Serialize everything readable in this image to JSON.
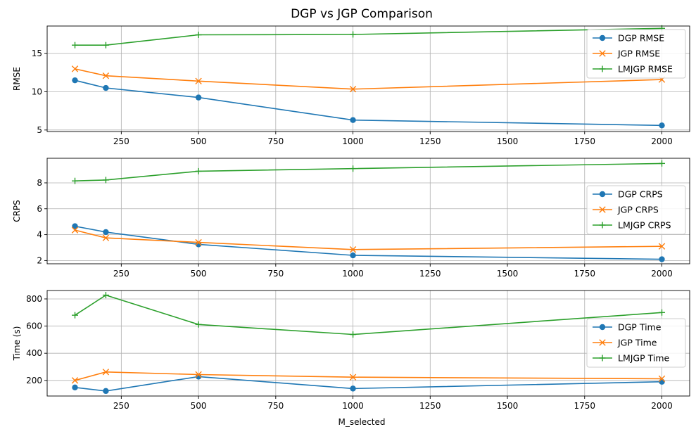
{
  "figure": {
    "title": "DGP vs JGP Comparison",
    "xlabel": "M_selected",
    "colors": {
      "DGP": "#1f77b4",
      "JGP": "#ff7f0e",
      "LMJGP": "#2ca02c",
      "grid": "#b0b0b0"
    }
  },
  "chart_data": [
    {
      "type": "line",
      "ylabel": "RMSE",
      "x": [
        100,
        200,
        500,
        1000,
        2000
      ],
      "xlim": [
        10,
        2090
      ],
      "ylim": [
        4.8,
        18.6
      ],
      "xticks": [
        250,
        500,
        750,
        1000,
        1250,
        1500,
        1750,
        2000
      ],
      "yticks": [
        5,
        10,
        15
      ],
      "grid": true,
      "legend": "upper right",
      "series": [
        {
          "name": "DGP RMSE",
          "marker": "circle",
          "values": [
            11.5,
            10.5,
            9.25,
            6.3,
            5.6
          ]
        },
        {
          "name": "JGP RMSE",
          "marker": "x",
          "values": [
            13.0,
            12.1,
            11.4,
            10.35,
            11.6
          ]
        },
        {
          "name": "LMJGP RMSE",
          "marker": "plus",
          "values": [
            16.1,
            16.1,
            17.45,
            17.5,
            18.3
          ]
        }
      ]
    },
    {
      "type": "line",
      "ylabel": "CRPS",
      "x": [
        100,
        200,
        500,
        1000,
        2000
      ],
      "xlim": [
        10,
        2090
      ],
      "ylim": [
        1.75,
        9.9
      ],
      "xticks": [
        250,
        500,
        750,
        1000,
        1250,
        1500,
        1750,
        2000
      ],
      "yticks": [
        2,
        4,
        6,
        8
      ],
      "grid": true,
      "legend": "center right",
      "series": [
        {
          "name": "DGP CRPS",
          "marker": "circle",
          "values": [
            4.65,
            4.2,
            3.25,
            2.4,
            2.1
          ]
        },
        {
          "name": "JGP CRPS",
          "marker": "x",
          "values": [
            4.35,
            3.75,
            3.4,
            2.85,
            3.1
          ]
        },
        {
          "name": "LMJGP CRPS",
          "marker": "plus",
          "values": [
            8.15,
            8.22,
            8.9,
            9.1,
            9.5
          ]
        }
      ]
    },
    {
      "type": "line",
      "ylabel": "Time (s)",
      "x": [
        100,
        200,
        500,
        1000,
        2000
      ],
      "xlim": [
        10,
        2090
      ],
      "ylim": [
        85,
        862
      ],
      "xticks": [
        250,
        500,
        750,
        1000,
        1250,
        1500,
        1750,
        2000
      ],
      "yticks": [
        200,
        400,
        600,
        800
      ],
      "grid": true,
      "legend": "center right",
      "series": [
        {
          "name": "DGP Time",
          "marker": "circle",
          "values": [
            148,
            122,
            228,
            140,
            190
          ]
        },
        {
          "name": "JGP Time",
          "marker": "x",
          "values": [
            200,
            262,
            243,
            224,
            212
          ]
        },
        {
          "name": "LMJGP Time",
          "marker": "plus",
          "values": [
            680,
            828,
            612,
            538,
            700
          ]
        }
      ]
    }
  ]
}
